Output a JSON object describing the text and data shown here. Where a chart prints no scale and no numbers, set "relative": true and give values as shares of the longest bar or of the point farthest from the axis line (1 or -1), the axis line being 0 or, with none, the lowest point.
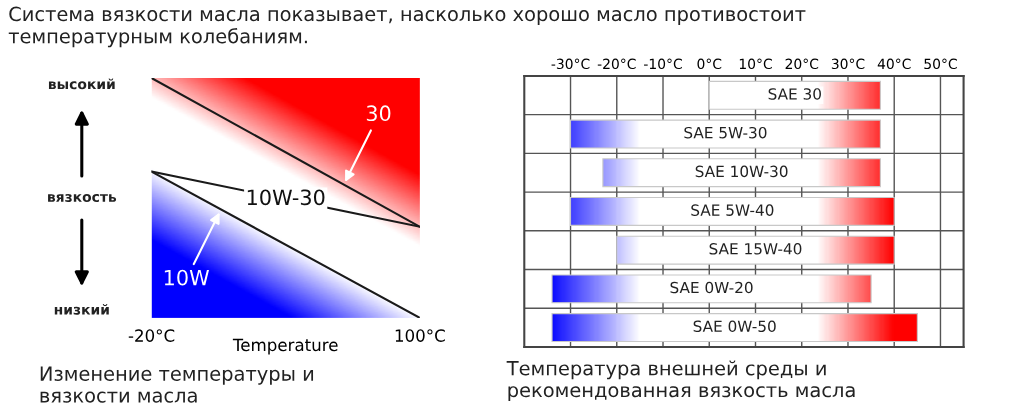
{
  "chart_data": [
    {
      "type": "line",
      "title": "Система вязкости масла показывает, насколько хорошо масло противостоит\nтемпературным колебаниям.",
      "ylabel": "вязкость",
      "xlabel": "Temperature",
      "relative": true,
      "tick_labels": "x",
      "x": [
        -20,
        100
      ],
      "xlim": [
        -20,
        100
      ],
      "xticks": [
        {
          "value": -20,
          "label": "-20°C"
        },
        {
          "value": 100,
          "label": "100°C"
        }
      ],
      "series": [
        {
          "color": "#1a1a1a",
          "values": [
            1.0,
            0.38
          ]
        },
        {
          "color": "#1a1a1a",
          "values": [
            0.61,
            0.38
          ]
        },
        {
          "color": "#1a1a1a",
          "values": [
            0.61,
            0.0
          ]
        }
      ],
      "annotations": [
        "высокий",
        "низкий",
        "Изменение температуры и\nвязкости масла",
        {
          "text": "30",
          "x": 66,
          "y": 0.556
        },
        {
          "text": "10W-30",
          "x": 40,
          "y": 0.495
        },
        {
          "text": "10W",
          "x": 11,
          "y": 0.45
        }
      ]
    },
    {
      "type": "bar",
      "orientation": "horizontal",
      "tick_labels": "x",
      "grid": true,
      "data_labels": false,
      "categories": [
        "SAE 30",
        "SAE 5W-30",
        "SAE 10W-30",
        "SAE 5W-40",
        "SAE 15W-40",
        "SAE 0W-20",
        "SAE 0W-50"
      ],
      "base": [
        0,
        -30,
        -23,
        -30,
        -20,
        -34,
        -34
      ],
      "values": [
        37,
        67,
        60,
        70,
        60,
        69,
        79
      ],
      "xlim": [
        -40,
        55
      ],
      "xticks": [
        {
          "value": -30,
          "label": "-30°C"
        },
        {
          "value": -20,
          "label": "-20°C"
        },
        {
          "value": -10,
          "label": "-10°C"
        },
        {
          "value": 0,
          "label": "0°C"
        },
        {
          "value": 10,
          "label": "10°C"
        },
        {
          "value": 20,
          "label": "20°C"
        },
        {
          "value": 30,
          "label": "30°C"
        },
        {
          "value": 40,
          "label": "40°C"
        },
        {
          "value": 50,
          "label": "50°C"
        }
      ],
      "annotations": [
        "Температура внешней среды и\nрекомендованная вязкость масла"
      ]
    }
  ]
}
